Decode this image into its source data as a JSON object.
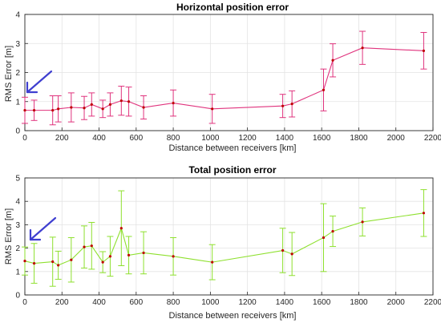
{
  "chart_data": [
    {
      "type": "line",
      "title": "Horizontal position error",
      "xlabel": "Distance between receivers [km]",
      "ylabel": "RMS Error [m]",
      "xlim": [
        0,
        2200
      ],
      "ylim": [
        0,
        4
      ],
      "xticks": [
        "0",
        "200",
        "400",
        "600",
        "800",
        "1000",
        "1200",
        "1400",
        "1600",
        "1800",
        "2000",
        "2200"
      ],
      "yticks": [
        "0",
        "1",
        "2",
        "3",
        "4"
      ],
      "grid": true,
      "line_color": "#e0337d",
      "marker_color": "#c00000",
      "points": [
        {
          "x": 0,
          "y": 0.7,
          "err": 0.45
        },
        {
          "x": 50,
          "y": 0.7,
          "err": 0.35
        },
        {
          "x": 150,
          "y": 0.7,
          "err": 0.5
        },
        {
          "x": 180,
          "y": 0.75,
          "err": 0.45
        },
        {
          "x": 250,
          "y": 0.8,
          "err": 0.5
        },
        {
          "x": 320,
          "y": 0.78,
          "err": 0.4
        },
        {
          "x": 360,
          "y": 0.9,
          "err": 0.4
        },
        {
          "x": 420,
          "y": 0.75,
          "err": 0.3
        },
        {
          "x": 460,
          "y": 0.9,
          "err": 0.4
        },
        {
          "x": 520,
          "y": 1.03,
          "err": 0.5
        },
        {
          "x": 560,
          "y": 1.0,
          "err": 0.5
        },
        {
          "x": 640,
          "y": 0.8,
          "err": 0.4
        },
        {
          "x": 800,
          "y": 0.95,
          "err": 0.45
        },
        {
          "x": 1010,
          "y": 0.75,
          "err": 0.5
        },
        {
          "x": 1390,
          "y": 0.85,
          "err": 0.4
        },
        {
          "x": 1440,
          "y": 0.92,
          "err": 0.45
        },
        {
          "x": 1610,
          "y": 1.4,
          "err": 0.72
        },
        {
          "x": 1660,
          "y": 2.42,
          "err": 0.57
        },
        {
          "x": 1820,
          "y": 2.85,
          "err": 0.57
        },
        {
          "x": 2150,
          "y": 2.75,
          "err": 0.63
        }
      ],
      "arrow_color": "#3f3fd0"
    },
    {
      "type": "line",
      "title": "Total position error",
      "xlabel": "Distance between receivers [km]",
      "ylabel": "RMS Error [m]",
      "xlim": [
        0,
        2200
      ],
      "ylim": [
        0,
        5
      ],
      "xticks": [
        "0",
        "200",
        "400",
        "600",
        "800",
        "1000",
        "1200",
        "1400",
        "1600",
        "1800",
        "2000",
        "2200"
      ],
      "yticks": [
        "0",
        "1",
        "2",
        "3",
        "4",
        "5"
      ],
      "grid": true,
      "line_color": "#8ee02e",
      "marker_color": "#c00000",
      "points": [
        {
          "x": 0,
          "y": 1.45,
          "err": 0.6
        },
        {
          "x": 50,
          "y": 1.35,
          "err": 0.85
        },
        {
          "x": 150,
          "y": 1.42,
          "err": 1.05
        },
        {
          "x": 180,
          "y": 1.27,
          "err": 0.6
        },
        {
          "x": 250,
          "y": 1.5,
          "err": 0.95
        },
        {
          "x": 320,
          "y": 2.05,
          "err": 0.9
        },
        {
          "x": 360,
          "y": 2.1,
          "err": 1.0
        },
        {
          "x": 420,
          "y": 1.4,
          "err": 0.45
        },
        {
          "x": 460,
          "y": 1.65,
          "err": 0.85
        },
        {
          "x": 520,
          "y": 2.85,
          "err": 1.6
        },
        {
          "x": 560,
          "y": 1.7,
          "err": 0.8
        },
        {
          "x": 640,
          "y": 1.8,
          "err": 0.9
        },
        {
          "x": 800,
          "y": 1.65,
          "err": 0.8
        },
        {
          "x": 1010,
          "y": 1.4,
          "err": 0.75
        },
        {
          "x": 1390,
          "y": 1.9,
          "err": 0.95
        },
        {
          "x": 1440,
          "y": 1.75,
          "err": 0.92
        },
        {
          "x": 1610,
          "y": 2.45,
          "err": 1.45
        },
        {
          "x": 1660,
          "y": 2.72,
          "err": 0.65
        },
        {
          "x": 1820,
          "y": 3.12,
          "err": 0.6
        },
        {
          "x": 2150,
          "y": 3.5,
          "err": 1.0
        }
      ],
      "arrow_color": "#3f3fd0"
    }
  ]
}
